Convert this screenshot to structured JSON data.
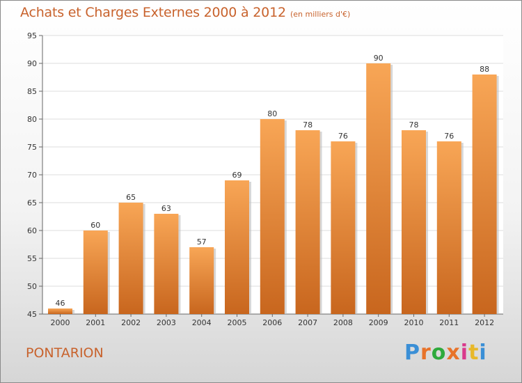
{
  "header": {
    "title": "Achats et Charges Externes 2000 à 2012",
    "subtitle": "(en milliers d'€)"
  },
  "footer": {
    "commune": "PONTARION",
    "logo_letters": [
      "P",
      "r",
      "o",
      "x",
      "i",
      "t",
      "i"
    ],
    "logo_colors": [
      "#3a8fd6",
      "#e8732a",
      "#2eaa3c",
      "#e8732a",
      "#d93a8c",
      "#e8b82a",
      "#3a8fd6"
    ]
  },
  "colors": {
    "bar_top": "#f8a656",
    "bar_bottom": "#c8661e",
    "accent_text": "#c8622c",
    "grid": "#dcdcdc"
  },
  "chart_data": {
    "type": "bar",
    "title": "Achats et Charges Externes 2000 à 2012",
    "subtitle": "(en milliers d'€)",
    "categories": [
      "2000",
      "2001",
      "2002",
      "2003",
      "2004",
      "2005",
      "2006",
      "2007",
      "2008",
      "2009",
      "2010",
      "2011",
      "2012"
    ],
    "values": [
      46,
      60,
      65,
      63,
      57,
      69,
      80,
      78,
      76,
      90,
      78,
      76,
      88
    ],
    "ylim": [
      45,
      95
    ],
    "yticks": [
      45,
      50,
      55,
      60,
      65,
      70,
      75,
      80,
      85,
      90,
      95
    ],
    "grid": true,
    "data_labels": true
  }
}
